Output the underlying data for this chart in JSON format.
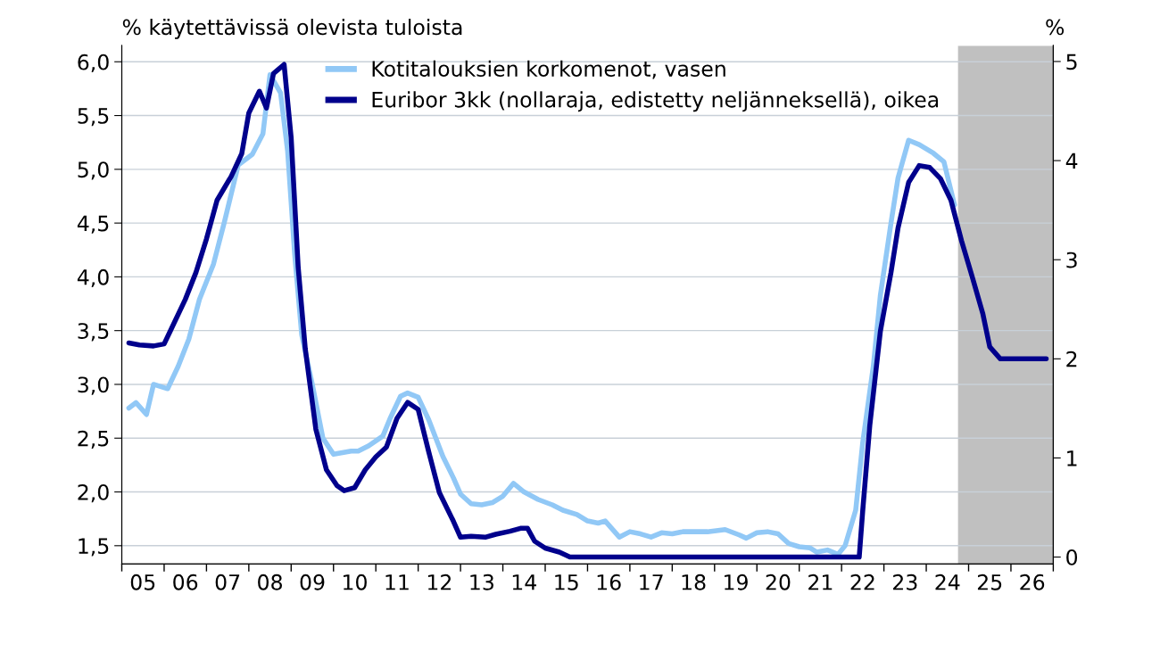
{
  "chart_data": {
    "type": "line",
    "ylabel": "% käytettävissä olevista tuloista",
    "y2label": "%",
    "xlim": [
      "2005",
      "2027"
    ],
    "xticks": [
      {
        "value": "2005",
        "label": null
      },
      {
        "value": "2006",
        "label": null
      },
      {
        "value": "2007",
        "label": null
      },
      {
        "value": "2008",
        "label": null
      },
      {
        "value": "2009",
        "label": null
      },
      {
        "value": "2010",
        "label": null
      },
      {
        "value": "2011",
        "label": null
      },
      {
        "value": "2012",
        "label": null
      },
      {
        "value": "2013",
        "label": null
      },
      {
        "value": "2014",
        "label": null
      },
      {
        "value": "2015",
        "label": null
      },
      {
        "value": "2016",
        "label": null
      },
      {
        "value": "2017",
        "label": null
      },
      {
        "value": "2018",
        "label": null
      },
      {
        "value": "2019",
        "label": null
      },
      {
        "value": "2020",
        "label": null
      },
      {
        "value": "2021",
        "label": null
      },
      {
        "value": "2022",
        "label": null
      },
      {
        "value": "2023",
        "label": null
      },
      {
        "value": "2024",
        "label": null
      },
      {
        "value": "2025",
        "label": null
      },
      {
        "value": "2026",
        "label": null
      },
      {
        "value": "2027",
        "label": null
      },
      {
        "value": "2005-07",
        "label": "05"
      },
      {
        "value": "2006-07",
        "label": "06"
      },
      {
        "value": "2007-07",
        "label": "07"
      },
      {
        "value": "2008-07",
        "label": "08"
      },
      {
        "value": "2009-07",
        "label": "09"
      },
      {
        "value": "2010-07",
        "label": "10"
      },
      {
        "value": "2011-07",
        "label": "11"
      },
      {
        "value": "2012-07",
        "label": "12"
      },
      {
        "value": "2013-07",
        "label": "13"
      },
      {
        "value": "2014-07",
        "label": "14"
      },
      {
        "value": "2015-07",
        "label": "15"
      },
      {
        "value": "2016-07",
        "label": "16"
      },
      {
        "value": "2017-07",
        "label": "17"
      },
      {
        "value": "2018-07",
        "label": "18"
      },
      {
        "value": "2019-07",
        "label": "19"
      },
      {
        "value": "2020-07",
        "label": "20"
      },
      {
        "value": "2021-07",
        "label": "21"
      },
      {
        "value": "2022-07",
        "label": "22"
      },
      {
        "value": "2023-07",
        "label": "23"
      },
      {
        "value": "2024-07",
        "label": "24"
      },
      {
        "value": "2025-07",
        "label": "25"
      },
      {
        "value": "2026-07",
        "label": "26"
      }
    ],
    "ylim": [
      1.33,
      6.15
    ],
    "yticks": [
      {
        "value": 1.5,
        "label": "1,5"
      },
      {
        "value": 2.0,
        "label": "2,0"
      },
      {
        "value": 2.5,
        "label": "2,5"
      },
      {
        "value": 3.0,
        "label": "3,0"
      },
      {
        "value": 3.5,
        "label": "3,5"
      },
      {
        "value": 4.0,
        "label": "4,0"
      },
      {
        "value": 4.5,
        "label": "4,5"
      },
      {
        "value": 5.0,
        "label": "5,0"
      },
      {
        "value": 5.5,
        "label": "5,5"
      },
      {
        "value": 6.0,
        "label": "6,0"
      }
    ],
    "y2lim": [
      -0.07,
      5.16
    ],
    "y2ticks": [
      0,
      1,
      2,
      3,
      4,
      5
    ],
    "grid": "y",
    "legend": "top",
    "line_style": "solid",
    "marker": "none",
    "bands": [
      {
        "axis": "x",
        "from": "2024-10",
        "to": "2027",
        "color": "#c0c0c0"
      }
    ],
    "series": [
      {
        "name": "Kotitalouksien korkomenot, vasen",
        "color": "#91c8f6",
        "x": [
          "2005-03",
          "2005-05",
          "2005-08",
          "2005-10",
          "2006-02",
          "2006-05",
          "2006-08",
          "2006-11",
          "2007-03",
          "2007-06",
          "2007-10",
          "2008-02",
          "2008-05",
          "2008-07",
          "2008-10",
          "2008-12",
          "2009-02",
          "2009-04",
          "2009-07",
          "2009-10",
          "2010-01",
          "2010-06",
          "2010-08",
          "2010-11",
          "2011-03",
          "2011-05",
          "2011-08",
          "2011-10",
          "2012-01",
          "2012-04",
          "2012-08",
          "2012-11",
          "2013-01",
          "2013-04",
          "2013-07",
          "2013-10",
          "2014-01",
          "2014-04",
          "2014-07",
          "2014-11",
          "2015-03",
          "2015-06",
          "2015-10",
          "2016-01",
          "2016-04",
          "2016-06",
          "2016-10",
          "2017-01",
          "2017-04",
          "2017-07",
          "2017-10",
          "2018-01",
          "2018-04",
          "2018-11",
          "2019-04",
          "2019-08",
          "2019-10",
          "2020-01",
          "2020-04",
          "2020-07",
          "2020-10",
          "2021-01",
          "2021-04",
          "2021-06",
          "2021-09",
          "2021-12",
          "2022-02",
          "2022-05",
          "2022-07",
          "2022-10",
          "2022-12",
          "2023-03",
          "2023-05",
          "2023-08",
          "2023-11",
          "2024-03",
          "2024-06",
          "2024-09"
        ],
        "values": [
          2.78,
          2.83,
          2.72,
          3.0,
          2.96,
          3.17,
          3.42,
          3.79,
          4.12,
          4.5,
          5.04,
          5.14,
          5.33,
          5.88,
          5.71,
          5.17,
          4.21,
          3.46,
          3.0,
          2.5,
          2.35,
          2.38,
          2.38,
          2.43,
          2.52,
          2.68,
          2.89,
          2.92,
          2.88,
          2.67,
          2.33,
          2.13,
          1.98,
          1.89,
          1.88,
          1.9,
          1.96,
          2.08,
          2.0,
          1.93,
          1.88,
          1.83,
          1.79,
          1.73,
          1.71,
          1.73,
          1.58,
          1.63,
          1.61,
          1.58,
          1.62,
          1.61,
          1.63,
          1.63,
          1.65,
          1.6,
          1.57,
          1.62,
          1.63,
          1.61,
          1.52,
          1.49,
          1.48,
          1.44,
          1.46,
          1.42,
          1.5,
          1.83,
          2.46,
          3.17,
          3.83,
          4.5,
          4.92,
          5.27,
          5.23,
          5.15,
          5.07,
          4.67
        ]
      },
      {
        "name": "Euribor 3kk (nollaraja, edistetty neljänneksellä), oikea",
        "color": "#00008c",
        "axis": "y2",
        "x": [
          "2005-03",
          "2005-06",
          "2005-10",
          "2006-01",
          "2006-03",
          "2006-07",
          "2006-10",
          "2007-01",
          "2007-04",
          "2007-08",
          "2007-11",
          "2008-01",
          "2008-04",
          "2008-06",
          "2008-08",
          "2008-11",
          "2009-01",
          "2009-03",
          "2009-05",
          "2009-08",
          "2009-11",
          "2010-02",
          "2010-04",
          "2010-07",
          "2010-10",
          "2011-01",
          "2011-04",
          "2011-07",
          "2011-10",
          "2012-01",
          "2012-04",
          "2012-07",
          "2012-11",
          "2013-01",
          "2013-04",
          "2013-08",
          "2013-11",
          "2014-03",
          "2014-06",
          "2014-08",
          "2014-10",
          "2015-01",
          "2015-05",
          "2015-08",
          "2022-06",
          "2022-07",
          "2022-09",
          "2022-12",
          "2023-03",
          "2023-05",
          "2023-08",
          "2023-11",
          "2024-02",
          "2024-05",
          "2024-08",
          "2024-11",
          "2025-02",
          "2025-05",
          "2025-07",
          "2025-10",
          "2026-11"
        ],
        "values": [
          2.16,
          2.14,
          2.13,
          2.15,
          2.3,
          2.6,
          2.87,
          3.21,
          3.6,
          3.84,
          4.07,
          4.48,
          4.7,
          4.53,
          4.88,
          4.97,
          4.23,
          2.92,
          2.1,
          1.29,
          0.88,
          0.72,
          0.67,
          0.7,
          0.88,
          1.01,
          1.11,
          1.4,
          1.56,
          1.49,
          1.06,
          0.65,
          0.36,
          0.2,
          0.21,
          0.2,
          0.23,
          0.26,
          0.29,
          0.29,
          0.16,
          0.09,
          0.05,
          0.0,
          0.0,
          0.47,
          1.33,
          2.28,
          2.87,
          3.32,
          3.78,
          3.95,
          3.93,
          3.82,
          3.6,
          3.19,
          2.83,
          2.46,
          2.12,
          2.0,
          2.0
        ]
      }
    ]
  }
}
